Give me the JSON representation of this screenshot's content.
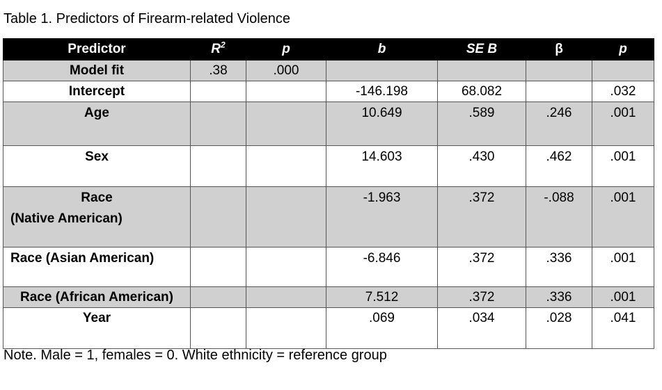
{
  "caption": "Table 1. Predictors of Firearm-related Violence",
  "note": "Note. Male = 1, females = 0. White ethnicity = reference group",
  "headers": {
    "predictor": "Predictor",
    "r2_base": "R",
    "r2_sup": "2",
    "p1": "p",
    "b": "b",
    "seb": "SE B",
    "beta": "β",
    "p2": "p"
  },
  "rows": [
    {
      "predictor": "Model fit",
      "r2": ".38",
      "p1": ".000",
      "b": "",
      "seb": "",
      "beta": "",
      "p2": ""
    },
    {
      "predictor": "Intercept",
      "r2": "",
      "p1": "",
      "b": "-146.198",
      "seb": "68.082",
      "beta": "",
      "p2": ".032"
    },
    {
      "predictor": "Age",
      "r2": "",
      "p1": "",
      "b": "10.649",
      "seb": ".589",
      "beta": ".246",
      "p2": ".001"
    },
    {
      "predictor": "Sex",
      "r2": "",
      "p1": "",
      "b": "14.603",
      "seb": ".430",
      "beta": ".462",
      "p2": ".001"
    },
    {
      "predictor_line1": "Race",
      "predictor_line2": "(Native American)",
      "r2": "",
      "p1": "",
      "b": "-1.963",
      "seb": ".372",
      "beta": "-.088",
      "p2": ".001"
    },
    {
      "predictor": "Race (Asian American)",
      "r2": "",
      "p1": "",
      "b": "-6.846",
      "seb": ".372",
      "beta": ".336",
      "p2": ".001"
    },
    {
      "predictor": "Race (African American)",
      "r2": "",
      "p1": "",
      "b": "7.512",
      "seb": ".372",
      "beta": ".336",
      "p2": ".001"
    },
    {
      "predictor": "Year",
      "r2": "",
      "p1": "",
      "b": ".069",
      "seb": ".034",
      "beta": ".028",
      "p2": ".041"
    }
  ]
}
